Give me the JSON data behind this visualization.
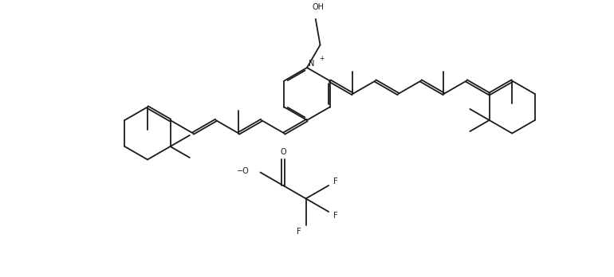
{
  "bg_color": "#ffffff",
  "line_color": "#1a1a1a",
  "line_width": 1.3,
  "figsize": [
    7.7,
    3.48
  ],
  "dpi": 100,
  "fs": 7.0,
  "bl": 0.33,
  "xlim": [
    0,
    7.7
  ],
  "ylim": [
    0,
    3.48
  ]
}
